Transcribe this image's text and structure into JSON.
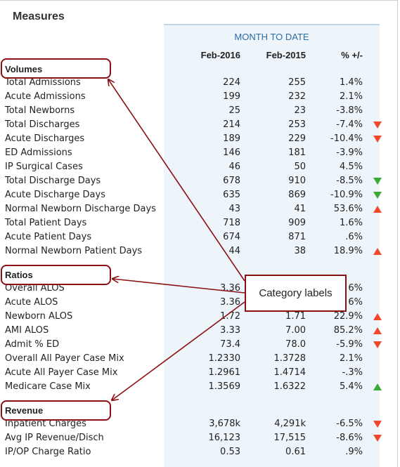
{
  "title": "Measures",
  "month_to_date": "MONTH TO DATE",
  "columns": {
    "col1": "Feb-2016",
    "col2": "Feb-2015",
    "col3": "% +/-"
  },
  "categories": {
    "volumes": "Volumes",
    "ratios": "Ratios",
    "revenue": "Revenue"
  },
  "callout_label": "Category labels",
  "indicator_colors": {
    "down": "#f0482a",
    "up": "#3aaa35"
  },
  "volumes_rows": [
    {
      "label": "Total Admissions",
      "v1": "224",
      "v2": "255",
      "pct": "1.4%",
      "ind": ""
    },
    {
      "label": "Acute Admissions",
      "v1": "199",
      "v2": "232",
      "pct": "2.1%",
      "ind": ""
    },
    {
      "label": "Total Newborns",
      "v1": "25",
      "v2": "23",
      "pct": "-3.8%",
      "ind": ""
    },
    {
      "label": "Total Discharges",
      "v1": "214",
      "v2": "253",
      "pct": "-7.4%",
      "ind": "down"
    },
    {
      "label": "Acute Discharges",
      "v1": "189",
      "v2": "229",
      "pct": "-10.4%",
      "ind": "down"
    },
    {
      "label": "ED Admissions",
      "v1": "146",
      "v2": "181",
      "pct": "-3.9%",
      "ind": ""
    },
    {
      "label": "IP Surgical Cases",
      "v1": "46",
      "v2": "50",
      "pct": "4.5%",
      "ind": ""
    },
    {
      "label": "Total Discharge Days",
      "v1": "678",
      "v2": "910",
      "pct": "-8.5%",
      "ind": "down-green"
    },
    {
      "label": "Acute Discharge Days",
      "v1": "635",
      "v2": "869",
      "pct": "-10.9%",
      "ind": "down-green"
    },
    {
      "label": "Normal Newborn Discharge Days",
      "v1": "43",
      "v2": "41",
      "pct": "53.6%",
      "ind": "up-red"
    },
    {
      "label": "Total Patient Days",
      "v1": "718",
      "v2": "909",
      "pct": "1.6%",
      "ind": ""
    },
    {
      "label": "Acute Patient Days",
      "v1": "674",
      "v2": "871",
      "pct": ".6%",
      "ind": ""
    },
    {
      "label": "Normal Newborn Patient Days",
      "v1": "44",
      "v2": "38",
      "pct": "18.9%",
      "ind": "up-red"
    }
  ],
  "ratios_rows": [
    {
      "label": "Overall ALOS",
      "v1": "3.36",
      "v2": "",
      "pct": "6%",
      "ind": ""
    },
    {
      "label": "Acute ALOS",
      "v1": "3.36",
      "v2": "",
      "pct": "6%",
      "ind": ""
    },
    {
      "label": "Newborn ALOS",
      "v1": "1.72",
      "v2": "1.71",
      "pct": "22.9%",
      "ind": "up-red"
    },
    {
      "label": "AMI ALOS",
      "v1": "3.33",
      "v2": "7.00",
      "pct": "85.2%",
      "ind": "up-red"
    },
    {
      "label": "Admit % ED",
      "v1": "73.4",
      "v2": "78.0",
      "pct": "-5.9%",
      "ind": "down"
    },
    {
      "label": "Overall All Payer Case Mix",
      "v1": "1.2330",
      "v2": "1.3728",
      "pct": "2.1%",
      "ind": ""
    },
    {
      "label": "Acute All Payer Case Mix",
      "v1": "1.2961",
      "v2": "1.4714",
      "pct": "-.3%",
      "ind": ""
    },
    {
      "label": "Medicare Case Mix",
      "v1": "1.3569",
      "v2": "1.6322",
      "pct": "5.4%",
      "ind": "up-green"
    }
  ],
  "revenue_rows": [
    {
      "label": "Inpatient Charges",
      "v1": "3,678k",
      "v2": "4,291k",
      "pct": "-6.5%",
      "ind": "down"
    },
    {
      "label": "Avg IP Revenue/Disch",
      "v1": "16,123",
      "v2": "17,515",
      "pct": "-8.6%",
      "ind": "down"
    },
    {
      "label": "IP/OP Charge Ratio",
      "v1": "0.53",
      "v2": "0.61",
      "pct": ".9%",
      "ind": ""
    }
  ]
}
